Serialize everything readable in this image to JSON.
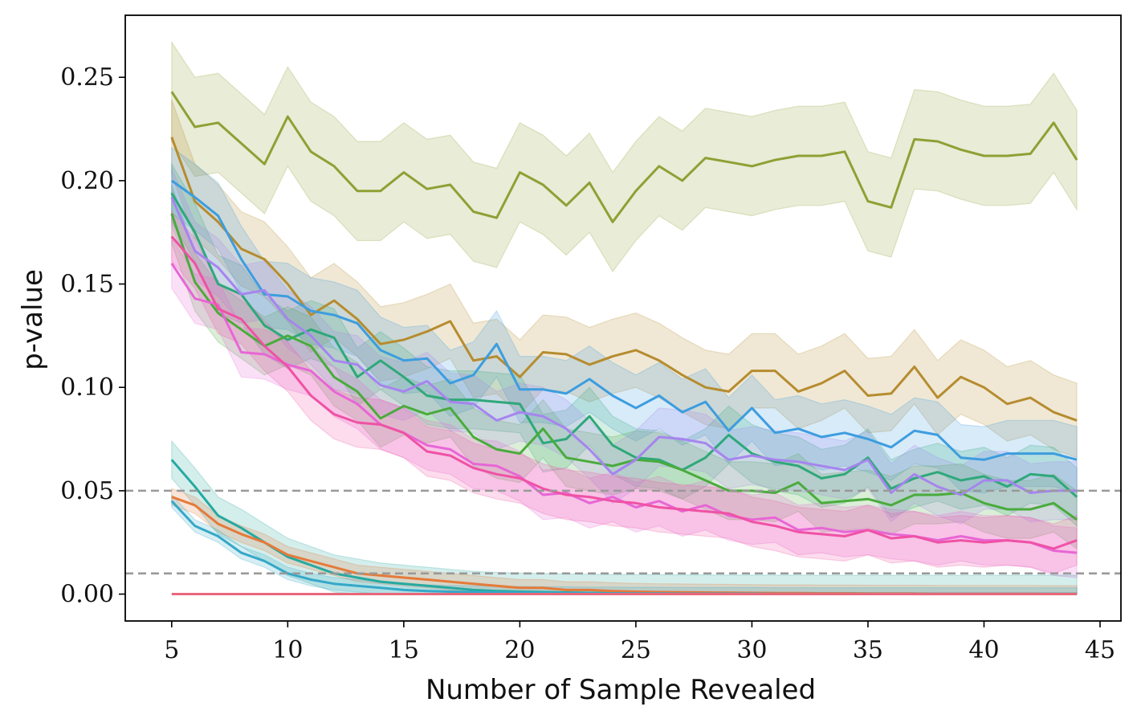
{
  "chart_data": {
    "type": "line",
    "xlabel": "Number of Sample Revealed",
    "ylabel": "p-value",
    "xlim": [
      3.0,
      45.9
    ],
    "ylim": [
      -0.013,
      0.28
    ],
    "x_ticks": [
      5,
      10,
      15,
      20,
      25,
      30,
      35,
      40,
      45
    ],
    "x_tick_labels": [
      "5",
      "10",
      "15",
      "20",
      "25",
      "30",
      "35",
      "40",
      "45"
    ],
    "y_ticks": [
      0.0,
      0.05,
      0.1,
      0.15,
      0.2,
      0.25
    ],
    "y_tick_labels": [
      "0.00",
      "0.05",
      "0.10",
      "0.15",
      "0.20",
      "0.25"
    ],
    "reference_lines": [
      {
        "y": 0.05,
        "style": "dashed",
        "color": "#999999"
      },
      {
        "y": 0.01,
        "style": "dashed",
        "color": "#999999"
      }
    ],
    "grid": false,
    "legend": "none",
    "x": [
      5,
      6,
      7,
      8,
      9,
      10,
      11,
      12,
      13,
      14,
      15,
      16,
      17,
      18,
      19,
      20,
      21,
      22,
      23,
      24,
      25,
      26,
      27,
      28,
      29,
      30,
      31,
      32,
      33,
      34,
      35,
      36,
      37,
      38,
      39,
      40,
      41,
      42,
      43,
      44
    ],
    "series": [
      {
        "color": "#8fa035",
        "values": [
          0.243,
          0.226,
          0.228,
          0.218,
          0.208,
          0.231,
          0.214,
          0.207,
          0.195,
          0.195,
          0.204,
          0.196,
          0.198,
          0.185,
          0.182,
          0.204,
          0.198,
          0.188,
          0.199,
          0.18,
          0.195,
          0.207,
          0.2,
          0.211,
          0.209,
          0.207,
          0.21,
          0.212,
          0.212,
          0.214,
          0.19,
          0.187,
          0.22,
          0.219,
          0.215,
          0.212,
          0.212,
          0.213,
          0.228,
          0.21
        ],
        "band": 0.024
      },
      {
        "color": "#b68c2f",
        "values": [
          0.221,
          0.19,
          0.18,
          0.167,
          0.162,
          0.15,
          0.135,
          0.142,
          0.133,
          0.121,
          0.123,
          0.127,
          0.132,
          0.113,
          0.115,
          0.105,
          0.117,
          0.116,
          0.111,
          0.115,
          0.118,
          0.113,
          0.106,
          0.1,
          0.098,
          0.108,
          0.108,
          0.098,
          0.102,
          0.108,
          0.096,
          0.097,
          0.11,
          0.095,
          0.105,
          0.1,
          0.092,
          0.095,
          0.088,
          0.084
        ],
        "band": 0.018
      },
      {
        "color": "#3d9ddf",
        "values": [
          0.2,
          0.192,
          0.183,
          0.162,
          0.145,
          0.144,
          0.137,
          0.135,
          0.131,
          0.118,
          0.113,
          0.114,
          0.102,
          0.106,
          0.121,
          0.099,
          0.099,
          0.097,
          0.104,
          0.096,
          0.09,
          0.096,
          0.088,
          0.093,
          0.079,
          0.09,
          0.078,
          0.08,
          0.076,
          0.078,
          0.075,
          0.071,
          0.079,
          0.077,
          0.066,
          0.065,
          0.068,
          0.068,
          0.068,
          0.065
        ],
        "band": 0.016
      },
      {
        "color": "#2fa87a",
        "values": [
          0.194,
          0.175,
          0.15,
          0.145,
          0.13,
          0.123,
          0.128,
          0.124,
          0.105,
          0.113,
          0.105,
          0.096,
          0.094,
          0.094,
          0.093,
          0.092,
          0.073,
          0.075,
          0.086,
          0.072,
          0.066,
          0.065,
          0.06,
          0.066,
          0.077,
          0.068,
          0.064,
          0.062,
          0.056,
          0.058,
          0.066,
          0.051,
          0.056,
          0.059,
          0.055,
          0.057,
          0.052,
          0.058,
          0.057,
          0.047
        ],
        "band": 0.014
      },
      {
        "color": "#4aab3d",
        "values": [
          0.184,
          0.151,
          0.136,
          0.128,
          0.12,
          0.125,
          0.12,
          0.105,
          0.098,
          0.085,
          0.091,
          0.087,
          0.09,
          0.076,
          0.07,
          0.068,
          0.08,
          0.066,
          0.064,
          0.062,
          0.065,
          0.064,
          0.06,
          0.055,
          0.05,
          0.05,
          0.049,
          0.054,
          0.044,
          0.045,
          0.046,
          0.043,
          0.048,
          0.048,
          0.049,
          0.044,
          0.041,
          0.041,
          0.044,
          0.036
        ],
        "band": 0.014
      },
      {
        "color": "#a685ee",
        "values": [
          0.192,
          0.166,
          0.158,
          0.145,
          0.147,
          0.133,
          0.125,
          0.113,
          0.111,
          0.101,
          0.098,
          0.103,
          0.093,
          0.092,
          0.084,
          0.088,
          0.086,
          0.08,
          0.07,
          0.058,
          0.065,
          0.076,
          0.075,
          0.073,
          0.065,
          0.067,
          0.065,
          0.064,
          0.062,
          0.06,
          0.065,
          0.049,
          0.058,
          0.052,
          0.048,
          0.055,
          0.055,
          0.049,
          0.05,
          0.05
        ],
        "band": 0.014
      },
      {
        "color": "#e766d6",
        "values": [
          0.16,
          0.143,
          0.14,
          0.117,
          0.116,
          0.111,
          0.108,
          0.098,
          0.092,
          0.082,
          0.078,
          0.072,
          0.07,
          0.063,
          0.062,
          0.057,
          0.048,
          0.049,
          0.044,
          0.047,
          0.042,
          0.045,
          0.04,
          0.043,
          0.038,
          0.036,
          0.037,
          0.031,
          0.032,
          0.03,
          0.031,
          0.029,
          0.028,
          0.026,
          0.028,
          0.026,
          0.026,
          0.025,
          0.021,
          0.02
        ],
        "band": 0.012
      },
      {
        "color": "#ef52a5",
        "values": [
          0.173,
          0.16,
          0.138,
          0.133,
          0.12,
          0.11,
          0.096,
          0.087,
          0.083,
          0.082,
          0.078,
          0.069,
          0.067,
          0.061,
          0.058,
          0.056,
          0.051,
          0.048,
          0.047,
          0.045,
          0.044,
          0.042,
          0.041,
          0.04,
          0.039,
          0.035,
          0.033,
          0.03,
          0.029,
          0.028,
          0.031,
          0.027,
          0.028,
          0.025,
          0.026,
          0.025,
          0.026,
          0.025,
          0.022,
          0.026
        ],
        "band": 0.012
      },
      {
        "color": "#26a9a0",
        "values": [
          0.065,
          0.052,
          0.038,
          0.032,
          0.025,
          0.018,
          0.014,
          0.01,
          0.008,
          0.006,
          0.005,
          0.004,
          0.003,
          0.002,
          0.0015,
          0.0012,
          0.001,
          0.0008,
          0.0006,
          0.0005,
          0.0004,
          0.0004,
          0.0003,
          0.0003,
          0.0002,
          0.0002,
          0.0002,
          0.0002,
          0.0001,
          0.0001,
          0.0001,
          0.0001,
          0.0001,
          0.0001,
          0.0001,
          0.0001,
          0.0001,
          0.0001,
          0.0001,
          0.0001
        ],
        "band": 0.009
      },
      {
        "color": "#e57a3a",
        "values": [
          0.047,
          0.043,
          0.034,
          0.029,
          0.025,
          0.019,
          0.016,
          0.013,
          0.01,
          0.009,
          0.008,
          0.007,
          0.006,
          0.005,
          0.004,
          0.003,
          0.003,
          0.002,
          0.002,
          0.0015,
          0.0012,
          0.001,
          0.0009,
          0.0008,
          0.0007,
          0.0006,
          0.0005,
          0.0005,
          0.0004,
          0.0004,
          0.0003,
          0.0003,
          0.0003,
          0.0002,
          0.0002,
          0.0002,
          0.0002,
          0.0002,
          0.0001,
          0.0001
        ],
        "band": 0.004
      },
      {
        "color": "#35a8c8",
        "values": [
          0.045,
          0.033,
          0.028,
          0.02,
          0.016,
          0.01,
          0.007,
          0.005,
          0.004,
          0.003,
          0.002,
          0.0015,
          0.0012,
          0.001,
          0.0008,
          0.0007,
          0.0006,
          0.0005,
          0.0004,
          0.0004,
          0.0003,
          0.0003,
          0.0002,
          0.0002,
          0.0002,
          0.0002,
          0.0001,
          0.0001,
          0.0001,
          0.0001,
          0.0001,
          0.0001,
          0.0001,
          0.0001,
          0.0001,
          0.0001,
          0.0001,
          0.0001,
          0.0001,
          0.0001
        ],
        "band": 0.003
      },
      {
        "color": "#e8677a",
        "values": [
          0,
          0,
          0,
          0,
          0,
          0,
          0,
          0,
          0,
          0,
          0,
          0,
          0,
          0,
          0,
          0,
          0,
          0,
          0,
          0,
          0,
          0,
          0,
          0,
          0,
          0,
          0,
          0,
          0,
          0,
          0,
          0,
          0,
          0,
          0,
          0,
          0,
          0,
          0,
          0
        ],
        "band": 0
      }
    ]
  }
}
